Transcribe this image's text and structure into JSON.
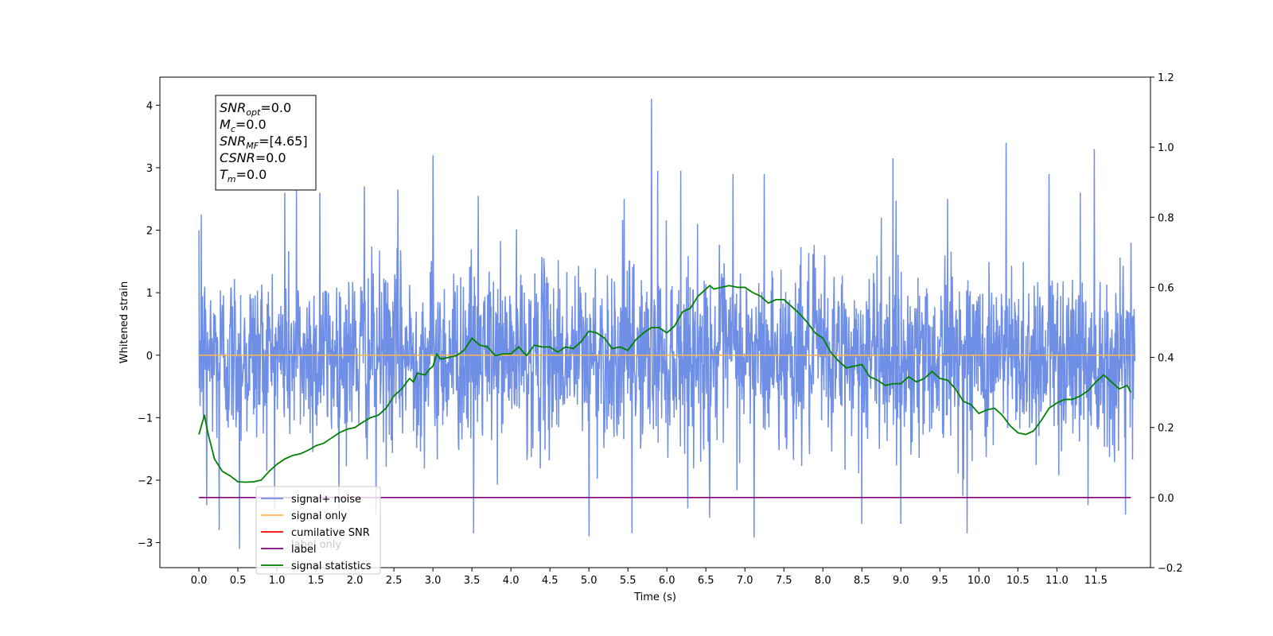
{
  "chart_data": {
    "type": "line",
    "xlabel": "Time (s)",
    "ylabel": "Whitened strain",
    "xlim": [
      -0.5,
      12.2
    ],
    "ylim": [
      -3.4,
      4.45
    ],
    "y2lim": [
      -0.2,
      1.2
    ],
    "x_ticks": [
      0.0,
      0.5,
      1.0,
      1.5,
      2.0,
      2.5,
      3.0,
      3.5,
      4.0,
      4.5,
      5.0,
      5.5,
      6.0,
      6.5,
      7.0,
      7.5,
      8.0,
      8.5,
      9.0,
      9.5,
      10.0,
      10.5,
      11.0,
      11.5
    ],
    "x_tick_labels": [
      "0.0",
      "0.5",
      "1.0",
      "1.5",
      "2.0",
      "2.5",
      "3.0",
      "3.5",
      "4.0",
      "4.5",
      "5.0",
      "5.5",
      "6.0",
      "6.5",
      "7.0",
      "7.5",
      "8.0",
      "8.5",
      "9.0",
      "9.5",
      "10.0",
      "10.5",
      "11.0",
      "11.5"
    ],
    "y_ticks": [
      -3,
      -2,
      -1,
      0,
      1,
      2,
      3,
      4
    ],
    "y_tick_labels": [
      "−3",
      "−2",
      "−1",
      "0",
      "1",
      "2",
      "3",
      "4"
    ],
    "y2_ticks": [
      -0.2,
      0.0,
      0.2,
      0.4,
      0.6,
      0.8,
      1.0,
      1.2
    ],
    "y2_tick_labels": [
      "−0.2",
      "0.0",
      "0.2",
      "0.4",
      "0.6",
      "0.8",
      "1.0",
      "1.2"
    ],
    "grid": false,
    "legend_position": "lower-left",
    "legend": [
      "signal+ noise",
      "signal only",
      "cumilative SNR",
      "label",
      "signal statistics"
    ],
    "legend_overlap_text": "label only",
    "series": [
      {
        "name": "signal+ noise",
        "color": "#6f8ee6",
        "axis": "left",
        "x_range": [
          0.0,
          12.0
        ],
        "samples": 2400,
        "amplitude_std": 0.72,
        "peaks": [
          [
            0.03,
            2.25
          ],
          [
            0.1,
            -2.4
          ],
          [
            0.26,
            -2.8
          ],
          [
            0.52,
            -3.1
          ],
          [
            1.1,
            2.6
          ],
          [
            1.25,
            2.65
          ],
          [
            1.55,
            2.6
          ],
          [
            2.12,
            2.7
          ],
          [
            2.27,
            -2.55
          ],
          [
            2.55,
            2.65
          ],
          [
            3.0,
            3.2
          ],
          [
            3.52,
            -2.85
          ],
          [
            3.58,
            2.55
          ],
          [
            5.0,
            -2.9
          ],
          [
            5.45,
            2.5
          ],
          [
            5.55,
            -2.85
          ],
          [
            5.8,
            4.1
          ],
          [
            5.88,
            2.95
          ],
          [
            6.18,
            2.95
          ],
          [
            6.55,
            -2.6
          ],
          [
            6.85,
            2.9
          ],
          [
            7.12,
            -2.92
          ],
          [
            7.25,
            2.9
          ],
          [
            8.5,
            -2.7
          ],
          [
            8.75,
            2.2
          ],
          [
            8.9,
            3.15
          ],
          [
            9.0,
            -2.7
          ],
          [
            9.6,
            2.5
          ],
          [
            9.85,
            -2.85
          ],
          [
            10.35,
            3.4
          ],
          [
            10.9,
            2.9
          ],
          [
            11.3,
            2.6
          ],
          [
            11.4,
            -2.4
          ],
          [
            11.48,
            3.3
          ],
          [
            11.88,
            -2.55
          ],
          [
            11.95,
            1.8
          ]
        ]
      },
      {
        "name": "signal only",
        "color": "#ffb84d",
        "axis": "left",
        "x": [
          0.0,
          12.0
        ],
        "y": [
          0.0,
          0.0
        ]
      },
      {
        "name": "cumilative SNR",
        "color": "#ff0000",
        "axis": "right",
        "x": [],
        "y": []
      },
      {
        "name": "label",
        "color": "#800080",
        "axis": "right",
        "x": [
          0.0,
          11.95
        ],
        "y": [
          0.0,
          0.0
        ]
      },
      {
        "name": "signal statistics",
        "color": "#008000",
        "axis": "right",
        "x": [
          0.0,
          0.07,
          0.12,
          0.2,
          0.3,
          0.4,
          0.5,
          0.6,
          0.7,
          0.8,
          0.9,
          1.0,
          1.1,
          1.2,
          1.3,
          1.4,
          1.5,
          1.6,
          1.7,
          1.8,
          1.9,
          2.0,
          2.1,
          2.2,
          2.3,
          2.4,
          2.5,
          2.6,
          2.7,
          2.75,
          2.8,
          2.9,
          2.95,
          3.0,
          3.05,
          3.1,
          3.2,
          3.3,
          3.4,
          3.5,
          3.55,
          3.6,
          3.7,
          3.8,
          3.9,
          4.0,
          4.1,
          4.2,
          4.3,
          4.4,
          4.5,
          4.6,
          4.7,
          4.8,
          4.9,
          5.0,
          5.1,
          5.2,
          5.3,
          5.4,
          5.5,
          5.6,
          5.7,
          5.8,
          5.9,
          6.0,
          6.1,
          6.2,
          6.3,
          6.4,
          6.5,
          6.55,
          6.6,
          6.7,
          6.8,
          6.9,
          7.0,
          7.1,
          7.2,
          7.3,
          7.4,
          7.5,
          7.6,
          7.7,
          7.8,
          7.9,
          8.0,
          8.1,
          8.2,
          8.3,
          8.4,
          8.5,
          8.6,
          8.7,
          8.8,
          8.9,
          9.0,
          9.1,
          9.2,
          9.3,
          9.4,
          9.5,
          9.6,
          9.7,
          9.8,
          9.9,
          10.0,
          10.1,
          10.2,
          10.3,
          10.4,
          10.5,
          10.6,
          10.7,
          10.8,
          10.9,
          11.0,
          11.1,
          11.2,
          11.3,
          11.4,
          11.5,
          11.6,
          11.7,
          11.8,
          11.9,
          11.95
        ],
        "y": [
          0.18,
          0.235,
          0.18,
          0.11,
          0.075,
          0.062,
          0.045,
          0.044,
          0.045,
          0.05,
          0.075,
          0.095,
          0.11,
          0.12,
          0.125,
          0.135,
          0.148,
          0.155,
          0.17,
          0.185,
          0.195,
          0.2,
          0.215,
          0.228,
          0.235,
          0.255,
          0.29,
          0.31,
          0.34,
          0.33,
          0.355,
          0.35,
          0.365,
          0.375,
          0.41,
          0.395,
          0.4,
          0.405,
          0.42,
          0.455,
          0.445,
          0.435,
          0.43,
          0.405,
          0.41,
          0.41,
          0.43,
          0.405,
          0.435,
          0.43,
          0.43,
          0.415,
          0.43,
          0.425,
          0.445,
          0.475,
          0.47,
          0.455,
          0.425,
          0.43,
          0.42,
          0.45,
          0.47,
          0.485,
          0.485,
          0.47,
          0.49,
          0.53,
          0.54,
          0.575,
          0.595,
          0.605,
          0.595,
          0.6,
          0.605,
          0.6,
          0.6,
          0.585,
          0.575,
          0.555,
          0.565,
          0.565,
          0.545,
          0.525,
          0.5,
          0.47,
          0.455,
          0.415,
          0.39,
          0.37,
          0.375,
          0.38,
          0.345,
          0.335,
          0.32,
          0.325,
          0.325,
          0.345,
          0.33,
          0.34,
          0.36,
          0.34,
          0.335,
          0.31,
          0.275,
          0.265,
          0.24,
          0.25,
          0.255,
          0.235,
          0.205,
          0.185,
          0.18,
          0.19,
          0.22,
          0.255,
          0.27,
          0.28,
          0.28,
          0.29,
          0.305,
          0.33,
          0.35,
          0.33,
          0.31,
          0.32,
          0.3
        ]
      }
    ],
    "info_box": [
      {
        "base": "SNR",
        "sub": "opt",
        "rest": "=0.0"
      },
      {
        "base": "M",
        "sub": "c",
        "rest": "=0.0"
      },
      {
        "base": "SNR",
        "sub": "MF",
        "rest": "=[4.65]"
      },
      {
        "base": "CSNR",
        "sub": "",
        "rest": "=0.0"
      },
      {
        "base": "T",
        "sub": "m",
        "rest": "=0.0"
      }
    ]
  }
}
